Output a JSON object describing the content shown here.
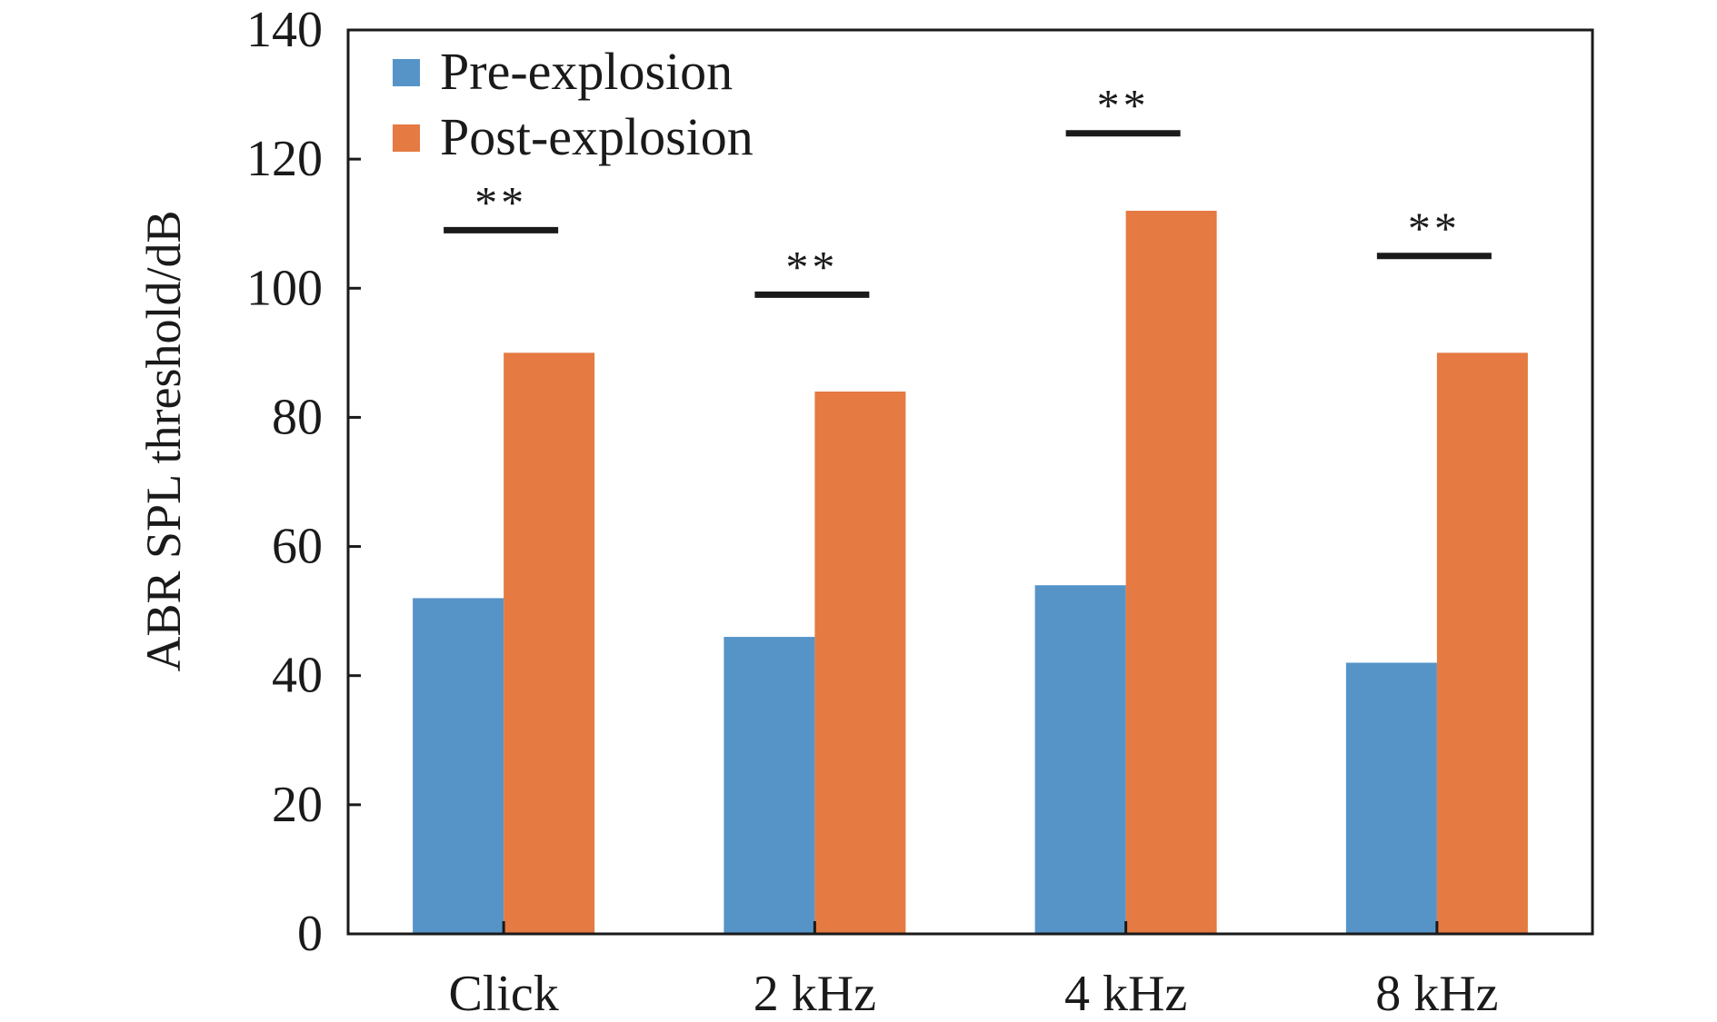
{
  "chart_data": {
    "type": "bar",
    "categories": [
      "Click",
      "2 kHz",
      "4 kHz",
      "8 kHz"
    ],
    "series": [
      {
        "name": "Pre-explosion",
        "color": "#5694C8",
        "values": [
          52,
          46,
          54,
          42
        ]
      },
      {
        "name": "Post-explosion",
        "color": "#E57A43",
        "values": [
          90,
          84,
          112,
          90
        ]
      }
    ],
    "xlabel": "",
    "ylabel": "ABR SPL threshold/dB",
    "ylim": [
      0,
      140
    ],
    "yticks": [
      "0",
      "20",
      "40",
      "60",
      "80",
      "100",
      "120",
      "140"
    ],
    "grid": false,
    "legend_position": "top-left",
    "annotations": [
      {
        "category": "Click",
        "text": "**",
        "y": 109
      },
      {
        "category": "2 kHz",
        "text": "**",
        "y": 99
      },
      {
        "category": "4 kHz",
        "text": "**",
        "y": 124
      },
      {
        "category": "8 kHz",
        "text": "**",
        "y": 105
      }
    ]
  }
}
